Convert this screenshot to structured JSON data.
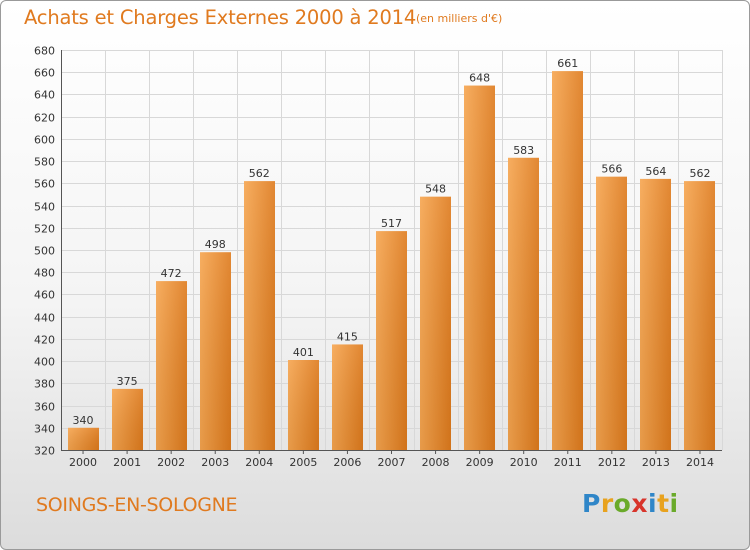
{
  "header": {
    "title": "Achats et Charges Externes 2000 à 2014",
    "subtitle": "(en milliers d'€)"
  },
  "footer": {
    "commune": "SOINGS-EN-SOLOGNE",
    "logo_letters": [
      "P",
      "r",
      "o",
      "x",
      "i",
      "t",
      "i"
    ]
  },
  "colors": {
    "accent": "#e07a1f",
    "bar_light": "#f6a54f",
    "bar_dark": "#de7a1c",
    "grid": "#d8d8d8"
  },
  "chart_data": {
    "type": "bar",
    "title": "Achats et Charges Externes 2000 à 2014",
    "subtitle": "(en milliers d'€)",
    "xlabel": "",
    "ylabel": "",
    "categories": [
      "2000",
      "2001",
      "2002",
      "2003",
      "2004",
      "2005",
      "2006",
      "2007",
      "2008",
      "2009",
      "2010",
      "2011",
      "2012",
      "2013",
      "2014"
    ],
    "values": [
      340,
      375,
      472,
      498,
      562,
      401,
      415,
      517,
      548,
      648,
      583,
      661,
      566,
      564,
      562
    ],
    "ylim": [
      320,
      680
    ],
    "yticks": [
      320,
      340,
      360,
      380,
      400,
      420,
      440,
      460,
      480,
      500,
      520,
      540,
      560,
      580,
      600,
      620,
      640,
      660,
      680
    ],
    "grid": true,
    "legend": "none",
    "data_labels": true
  }
}
